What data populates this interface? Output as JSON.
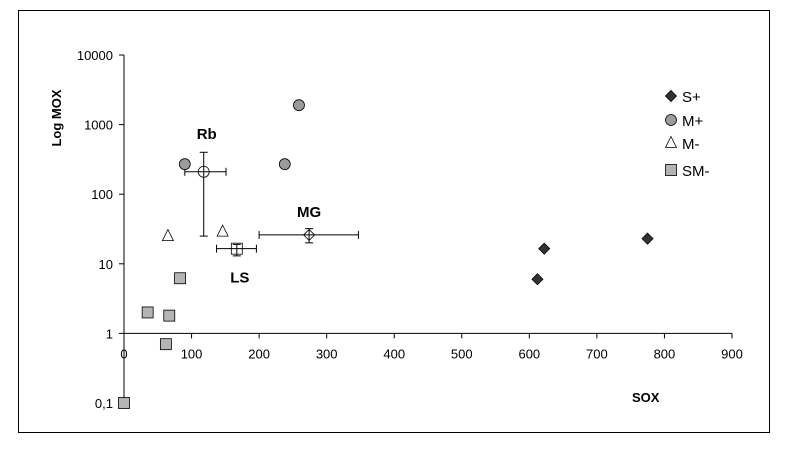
{
  "chart_data": {
    "type": "scatter",
    "xlabel": "SOX",
    "ylabel": "Log MOX",
    "xlim": [
      0,
      900
    ],
    "ylim": [
      0.1,
      10000
    ],
    "y_scale": "log",
    "x_ticks": [
      0,
      100,
      200,
      300,
      400,
      500,
      600,
      700,
      800,
      900
    ],
    "y_ticks": [
      {
        "value": 0.1,
        "label": "0,1"
      },
      {
        "value": 1,
        "label": "1"
      },
      {
        "value": 10,
        "label": "10"
      },
      {
        "value": 100,
        "label": "100"
      },
      {
        "value": 1000,
        "label": "1000"
      },
      {
        "value": 10000,
        "label": "10000"
      }
    ],
    "grid": false,
    "legend_position": "top-right",
    "series": [
      {
        "name": "S+",
        "marker": "diamond",
        "color": "#333333",
        "points": [
          {
            "x": 612,
            "y": 6
          },
          {
            "x": 622,
            "y": 16.5
          },
          {
            "x": 775,
            "y": 23
          }
        ]
      },
      {
        "name": "M+",
        "marker": "circle",
        "color": "#9b9b9b",
        "points": [
          {
            "x": 90,
            "y": 270
          },
          {
            "x": 238,
            "y": 270
          },
          {
            "x": 259,
            "y": 1900
          }
        ]
      },
      {
        "name": "M-",
        "marker": "triangle",
        "color": "#ffffff",
        "points": [
          {
            "x": 65,
            "y": 25
          },
          {
            "x": 146,
            "y": 29
          },
          {
            "x": 0,
            "y": 0.1
          }
        ]
      },
      {
        "name": "SM-",
        "marker": "square",
        "color": "#b4b4b4",
        "points": [
          {
            "x": 35,
            "y": 2
          },
          {
            "x": 62,
            "y": 0.7
          },
          {
            "x": 67,
            "y": 1.8
          },
          {
            "x": 83,
            "y": 6.2
          },
          {
            "x": 0,
            "y": 0.1
          }
        ]
      }
    ],
    "group_means": [
      {
        "label": "Rb",
        "marker": "circle",
        "x": 118,
        "y": 210,
        "x_err": [
          90,
          151
        ],
        "y_err": [
          25,
          400
        ]
      },
      {
        "label": "MG",
        "marker": "diamond",
        "x": 274,
        "y": 26,
        "x_err": [
          200,
          347
        ],
        "y_err": [
          20,
          32
        ]
      },
      {
        "label": "LS",
        "marker": "square",
        "x": 167,
        "y": 16.5,
        "x_err": [
          137,
          196
        ],
        "y_err": [
          13,
          19
        ]
      }
    ]
  }
}
